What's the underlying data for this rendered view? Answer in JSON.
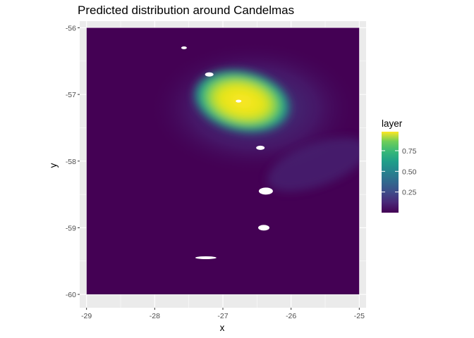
{
  "chart_data": {
    "type": "heatmap",
    "title": "Predicted distribution around Candelmas",
    "xlabel": "x",
    "ylabel": "y",
    "xlim": [
      -29.1,
      -24.9
    ],
    "ylim": [
      -60.2,
      -55.9
    ],
    "x_ticks": [
      -29,
      -28,
      -27,
      -26,
      -25
    ],
    "y_ticks": [
      -56,
      -57,
      -58,
      -59,
      -60
    ],
    "x_tick_labels": [
      "-29",
      "-28",
      "-27",
      "-26",
      "-25"
    ],
    "y_tick_labels": [
      "-56",
      "-57",
      "-58",
      "-59",
      "-60"
    ],
    "raster_extent": {
      "x": [
        -29.0,
        -25.0
      ],
      "y": [
        -60.0,
        -56.0
      ]
    },
    "colorscale": "viridis",
    "legend": {
      "title": "layer",
      "placement": "right",
      "range": [
        0.0,
        0.98
      ],
      "ticks": [
        0.25,
        0.5,
        0.75
      ],
      "tick_labels": [
        "0.25",
        "0.50",
        "0.75"
      ]
    },
    "hotspot": {
      "x": -26.75,
      "y": -57.1,
      "peak_value": 0.98
    },
    "background_value": 0.03,
    "no_data_islands": [
      {
        "x": -27.57,
        "y": -56.3
      },
      {
        "x": -27.2,
        "y": -56.7
      },
      {
        "x": -26.77,
        "y": -57.1
      },
      {
        "x": -26.45,
        "y": -57.8
      },
      {
        "x": -26.37,
        "y": -58.45
      },
      {
        "x": -26.4,
        "y": -59.0
      },
      {
        "x": -27.25,
        "y": -59.45
      }
    ],
    "panel_background": "#ebebeb",
    "grid": true
  }
}
